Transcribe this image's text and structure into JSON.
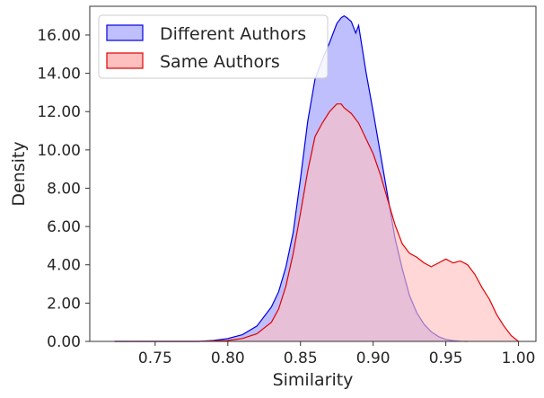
{
  "chart_data": {
    "type": "area",
    "xlabel": "Similarity",
    "ylabel": "Density",
    "xlim": [
      0.705,
      1.012
    ],
    "ylim": [
      0,
      17.5
    ],
    "xticks": [
      0.75,
      0.8,
      0.85,
      0.9,
      0.95,
      1.0
    ],
    "xtick_labels": [
      "0.75",
      "0.80",
      "0.85",
      "0.90",
      "0.95",
      "1.00"
    ],
    "yticks": [
      0,
      2,
      4,
      6,
      8,
      10,
      12,
      14,
      16
    ],
    "ytick_labels": [
      "0.00",
      "2.00",
      "4.00",
      "6.00",
      "8.00",
      "10.00",
      "12.00",
      "14.00",
      "16.00"
    ],
    "grid": false,
    "legend_position": "top-left",
    "series": [
      {
        "name": "Different Authors",
        "fill": "#bfbffd",
        "stroke": "#0000e0",
        "x": [
          0.722,
          0.78,
          0.79,
          0.8,
          0.81,
          0.82,
          0.83,
          0.835,
          0.84,
          0.845,
          0.85,
          0.855,
          0.86,
          0.865,
          0.87,
          0.875,
          0.878,
          0.88,
          0.882,
          0.885,
          0.888,
          0.89,
          0.895,
          0.9,
          0.905,
          0.91,
          0.915,
          0.92,
          0.925,
          0.93,
          0.935,
          0.94,
          0.945,
          0.95,
          0.955,
          0.96,
          0.965
        ],
        "y": [
          0.0,
          0.0,
          0.05,
          0.15,
          0.35,
          0.8,
          1.8,
          2.6,
          3.9,
          5.7,
          8.5,
          11.5,
          13.7,
          14.7,
          15.6,
          16.6,
          16.9,
          17.0,
          16.9,
          16.7,
          16.1,
          16.5,
          14.1,
          12.0,
          9.8,
          7.6,
          5.4,
          3.8,
          2.4,
          1.5,
          0.9,
          0.5,
          0.25,
          0.1,
          0.04,
          0.01,
          0.0
        ]
      },
      {
        "name": "Same Authors",
        "fill": "#ffbfbf",
        "stroke": "#e00000",
        "x": [
          0.722,
          0.78,
          0.8,
          0.81,
          0.82,
          0.83,
          0.835,
          0.84,
          0.845,
          0.85,
          0.855,
          0.86,
          0.865,
          0.87,
          0.875,
          0.878,
          0.88,
          0.885,
          0.89,
          0.895,
          0.9,
          0.905,
          0.91,
          0.915,
          0.92,
          0.925,
          0.93,
          0.935,
          0.94,
          0.945,
          0.95,
          0.955,
          0.96,
          0.965,
          0.97,
          0.975,
          0.98,
          0.985,
          0.99,
          0.995,
          1.0
        ],
        "y": [
          0.0,
          0.0,
          0.05,
          0.15,
          0.4,
          1.0,
          1.7,
          2.9,
          4.6,
          6.7,
          8.9,
          10.7,
          11.4,
          12.0,
          12.4,
          12.4,
          12.2,
          11.9,
          11.4,
          10.6,
          9.8,
          8.7,
          7.4,
          6.1,
          5.1,
          4.6,
          4.4,
          4.1,
          3.9,
          4.1,
          4.3,
          4.1,
          4.2,
          4.0,
          3.5,
          2.8,
          2.2,
          1.4,
          0.8,
          0.3,
          0.0
        ]
      }
    ]
  }
}
